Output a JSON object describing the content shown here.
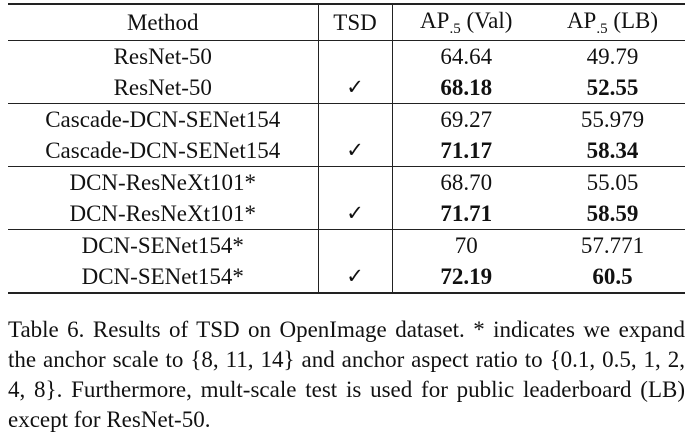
{
  "table": {
    "headers": {
      "method": "Method",
      "tsd": "TSD",
      "ap_val_prefix": "AP",
      "ap_val_sub": ".5",
      "ap_val_suffix": " (Val)",
      "ap_lb_prefix": "AP",
      "ap_lb_sub": ".5",
      "ap_lb_suffix": " (LB)"
    },
    "groups": [
      {
        "rows": [
          {
            "method": "ResNet-50",
            "tsd": "",
            "val": "64.64",
            "lb": "49.79",
            "bold": false
          },
          {
            "method": "ResNet-50",
            "tsd": "✓",
            "val": "68.18",
            "lb": "52.55",
            "bold": true
          }
        ]
      },
      {
        "rows": [
          {
            "method": "Cascade-DCN-SENet154",
            "tsd": "",
            "val": "69.27",
            "lb": "55.979",
            "bold": false
          },
          {
            "method": "Cascade-DCN-SENet154",
            "tsd": "✓",
            "val": "71.17",
            "lb": "58.34",
            "bold": true
          }
        ]
      },
      {
        "rows": [
          {
            "method": "DCN-ResNeXt101*",
            "tsd": "",
            "val": "68.70",
            "lb": "55.05",
            "bold": false
          },
          {
            "method": "DCN-ResNeXt101*",
            "tsd": "✓",
            "val": "71.71",
            "lb": "58.59",
            "bold": true
          }
        ]
      },
      {
        "rows": [
          {
            "method": "DCN-SENet154*",
            "tsd": "",
            "val": "70",
            "lb": "57.771",
            "bold": false
          },
          {
            "method": "DCN-SENet154*",
            "tsd": "✓",
            "val": "72.19",
            "lb": "60.5",
            "bold": true
          }
        ]
      }
    ]
  },
  "caption": {
    "text": "Table 6. Results of TSD on OpenImage dataset. * indicates we expand the anchor scale to {8, 11, 14} and anchor aspect ratio to {0.1, 0.5, 1, 2, 4, 8}. Furthermore, mult-scale test is used for public leaderboard (LB) except for ResNet-50."
  }
}
